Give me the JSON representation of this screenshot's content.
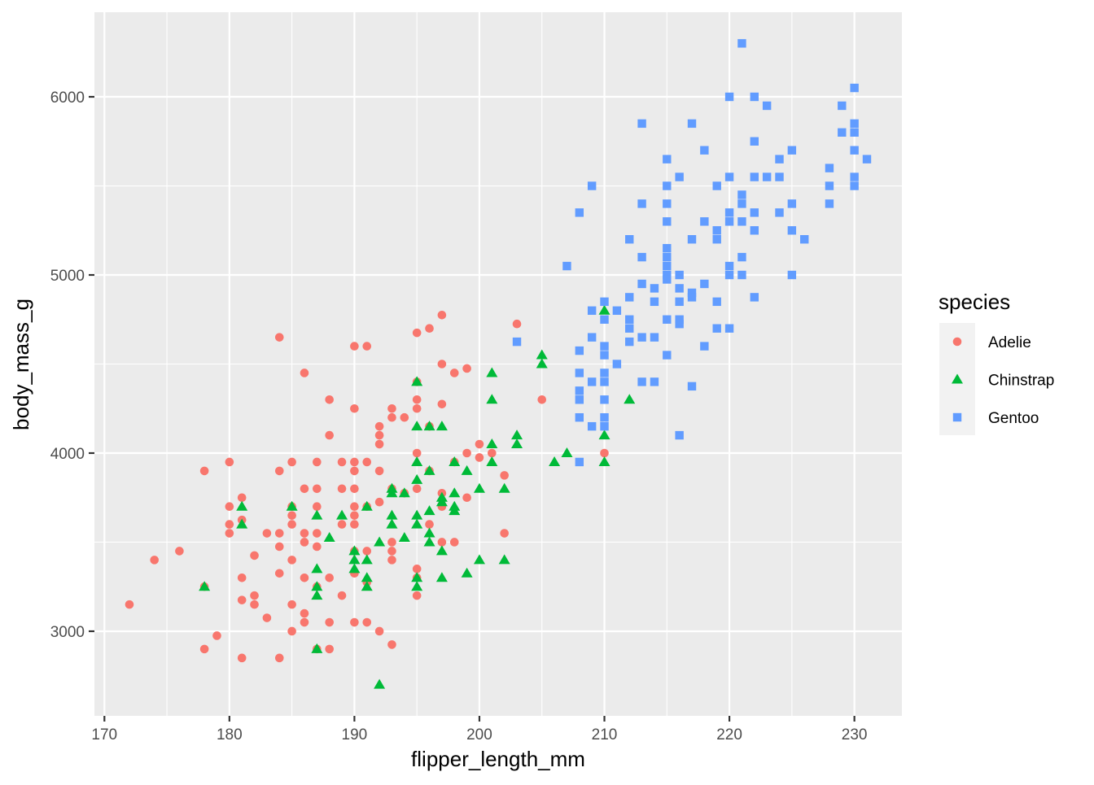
{
  "chart_data": {
    "type": "scatter",
    "title": "",
    "xlabel": "flipper_length_mm",
    "ylabel": "body_mass_g",
    "xlim": [
      169.2,
      233.8
    ],
    "ylim": [
      2525,
      6475
    ],
    "x_ticks": [
      170,
      180,
      190,
      200,
      210,
      220,
      230
    ],
    "y_ticks": [
      3000,
      4000,
      5000,
      6000
    ],
    "grid": true,
    "legend": {
      "title": "species",
      "position": "right"
    },
    "series": [
      {
        "name": "Adelie",
        "color": "#F8766D",
        "shape": "circle",
        "points": [
          [
            172,
            3150
          ],
          [
            174,
            3400
          ],
          [
            176,
            3450
          ],
          [
            178,
            3900
          ],
          [
            178,
            3250
          ],
          [
            178,
            2900
          ],
          [
            179,
            2975
          ],
          [
            180,
            3950
          ],
          [
            180,
            3700
          ],
          [
            180,
            3600
          ],
          [
            180,
            3550
          ],
          [
            181,
            3750
          ],
          [
            181,
            3625
          ],
          [
            181,
            3300
          ],
          [
            181,
            3175
          ],
          [
            181,
            2850
          ],
          [
            182,
            3425
          ],
          [
            182,
            3200
          ],
          [
            182,
            3150
          ],
          [
            183,
            3550
          ],
          [
            183,
            3075
          ],
          [
            184,
            4650
          ],
          [
            184,
            3900
          ],
          [
            184,
            3550
          ],
          [
            184,
            3475
          ],
          [
            184,
            3325
          ],
          [
            184,
            2850
          ],
          [
            185,
            3950
          ],
          [
            185,
            3700
          ],
          [
            185,
            3650
          ],
          [
            185,
            3600
          ],
          [
            185,
            3400
          ],
          [
            185,
            3150
          ],
          [
            185,
            3000
          ],
          [
            186,
            4450
          ],
          [
            186,
            3800
          ],
          [
            186,
            3550
          ],
          [
            186,
            3500
          ],
          [
            186,
            3300
          ],
          [
            186,
            3100
          ],
          [
            186,
            3050
          ],
          [
            187,
            3950
          ],
          [
            187,
            3800
          ],
          [
            187,
            3700
          ],
          [
            187,
            3550
          ],
          [
            187,
            3475
          ],
          [
            187,
            3250
          ],
          [
            187,
            2900
          ],
          [
            188,
            4300
          ],
          [
            188,
            4100
          ],
          [
            188,
            3300
          ],
          [
            188,
            3050
          ],
          [
            188,
            2900
          ],
          [
            189,
            3950
          ],
          [
            189,
            3800
          ],
          [
            189,
            3600
          ],
          [
            189,
            3200
          ],
          [
            190,
            4600
          ],
          [
            190,
            4250
          ],
          [
            190,
            3950
          ],
          [
            190,
            3900
          ],
          [
            190,
            3800
          ],
          [
            190,
            3700
          ],
          [
            190,
            3650
          ],
          [
            190,
            3600
          ],
          [
            190,
            3450
          ],
          [
            190,
            3325
          ],
          [
            190,
            3050
          ],
          [
            191,
            4600
          ],
          [
            191,
            3950
          ],
          [
            191,
            3700
          ],
          [
            191,
            3450
          ],
          [
            191,
            3275
          ],
          [
            191,
            3050
          ],
          [
            192,
            4150
          ],
          [
            192,
            4100
          ],
          [
            192,
            4050
          ],
          [
            192,
            3900
          ],
          [
            192,
            3725
          ],
          [
            192,
            3000
          ],
          [
            193,
            4250
          ],
          [
            193,
            4200
          ],
          [
            193,
            3800
          ],
          [
            193,
            3500
          ],
          [
            193,
            3450
          ],
          [
            193,
            3400
          ],
          [
            193,
            2925
          ],
          [
            194,
            4200
          ],
          [
            194,
            3775
          ],
          [
            195,
            4675
          ],
          [
            195,
            4400
          ],
          [
            195,
            4300
          ],
          [
            195,
            4250
          ],
          [
            195,
            4000
          ],
          [
            195,
            3800
          ],
          [
            195,
            3350
          ],
          [
            195,
            3300
          ],
          [
            195,
            3200
          ],
          [
            196,
            4700
          ],
          [
            196,
            4150
          ],
          [
            196,
            3900
          ],
          [
            196,
            3600
          ],
          [
            197,
            4775
          ],
          [
            197,
            4500
          ],
          [
            197,
            4275
          ],
          [
            197,
            3775
          ],
          [
            197,
            3700
          ],
          [
            197,
            3500
          ],
          [
            198,
            4450
          ],
          [
            198,
            3950
          ],
          [
            198,
            3500
          ],
          [
            199,
            4475
          ],
          [
            199,
            4000
          ],
          [
            199,
            3750
          ],
          [
            200,
            4050
          ],
          [
            200,
            3975
          ],
          [
            201,
            4000
          ],
          [
            202,
            3875
          ],
          [
            202,
            3550
          ],
          [
            203,
            4725
          ],
          [
            205,
            4300
          ],
          [
            210,
            4000
          ]
        ]
      },
      {
        "name": "Chinstrap",
        "color": "#00BA38",
        "shape": "triangle",
        "points": [
          [
            178,
            3250
          ],
          [
            181,
            3700
          ],
          [
            181,
            3600
          ],
          [
            185,
            3700
          ],
          [
            187,
            3650
          ],
          [
            187,
            3350
          ],
          [
            187,
            3250
          ],
          [
            187,
            3200
          ],
          [
            187,
            2900
          ],
          [
            188,
            3525
          ],
          [
            189,
            3650
          ],
          [
            190,
            3450
          ],
          [
            190,
            3400
          ],
          [
            190,
            3350
          ],
          [
            191,
            3700
          ],
          [
            191,
            3400
          ],
          [
            191,
            3300
          ],
          [
            191,
            3250
          ],
          [
            192,
            3500
          ],
          [
            192,
            2700
          ],
          [
            193,
            3800
          ],
          [
            193,
            3775
          ],
          [
            193,
            3650
          ],
          [
            193,
            3600
          ],
          [
            194,
            3775
          ],
          [
            194,
            3525
          ],
          [
            195,
            4400
          ],
          [
            195,
            4150
          ],
          [
            195,
            3950
          ],
          [
            195,
            3850
          ],
          [
            195,
            3650
          ],
          [
            195,
            3600
          ],
          [
            195,
            3300
          ],
          [
            195,
            3250
          ],
          [
            196,
            4150
          ],
          [
            196,
            3900
          ],
          [
            196,
            3675
          ],
          [
            196,
            3550
          ],
          [
            196,
            3500
          ],
          [
            197,
            4150
          ],
          [
            197,
            3750
          ],
          [
            197,
            3725
          ],
          [
            197,
            3450
          ],
          [
            197,
            3300
          ],
          [
            198,
            3950
          ],
          [
            198,
            3775
          ],
          [
            198,
            3700
          ],
          [
            198,
            3675
          ],
          [
            199,
            3900
          ],
          [
            199,
            3325
          ],
          [
            200,
            3800
          ],
          [
            200,
            3400
          ],
          [
            201,
            4450
          ],
          [
            201,
            4300
          ],
          [
            201,
            4050
          ],
          [
            201,
            3950
          ],
          [
            202,
            3800
          ],
          [
            202,
            3400
          ],
          [
            203,
            4100
          ],
          [
            203,
            4050
          ],
          [
            205,
            4550
          ],
          [
            205,
            4500
          ],
          [
            206,
            3950
          ],
          [
            207,
            4000
          ],
          [
            210,
            4800
          ],
          [
            210,
            4100
          ],
          [
            210,
            3950
          ],
          [
            212,
            4300
          ]
        ]
      },
      {
        "name": "Gentoo",
        "color": "#619CFF",
        "shape": "square",
        "points": [
          [
            203,
            4625
          ],
          [
            207,
            5050
          ],
          [
            208,
            5350
          ],
          [
            208,
            4575
          ],
          [
            208,
            4450
          ],
          [
            208,
            4350
          ],
          [
            208,
            4300
          ],
          [
            208,
            4200
          ],
          [
            208,
            3950
          ],
          [
            209,
            5500
          ],
          [
            209,
            4800
          ],
          [
            209,
            4650
          ],
          [
            209,
            4400
          ],
          [
            209,
            4150
          ],
          [
            210,
            4850
          ],
          [
            210,
            4750
          ],
          [
            210,
            4600
          ],
          [
            210,
            4550
          ],
          [
            210,
            4450
          ],
          [
            210,
            4400
          ],
          [
            210,
            4300
          ],
          [
            210,
            4200
          ],
          [
            210,
            4150
          ],
          [
            211,
            4800
          ],
          [
            211,
            4500
          ],
          [
            212,
            5200
          ],
          [
            212,
            4875
          ],
          [
            212,
            4750
          ],
          [
            212,
            4700
          ],
          [
            212,
            4625
          ],
          [
            213,
            5850
          ],
          [
            213,
            5400
          ],
          [
            213,
            5100
          ],
          [
            213,
            4950
          ],
          [
            213,
            4650
          ],
          [
            213,
            4400
          ],
          [
            214,
            4925
          ],
          [
            214,
            4850
          ],
          [
            214,
            4650
          ],
          [
            214,
            4400
          ],
          [
            215,
            5650
          ],
          [
            215,
            5500
          ],
          [
            215,
            5400
          ],
          [
            215,
            5300
          ],
          [
            215,
            5150
          ],
          [
            215,
            5100
          ],
          [
            215,
            5050
          ],
          [
            215,
            5000
          ],
          [
            215,
            4975
          ],
          [
            215,
            4750
          ],
          [
            215,
            4550
          ],
          [
            216,
            5550
          ],
          [
            216,
            5000
          ],
          [
            216,
            4925
          ],
          [
            216,
            4850
          ],
          [
            216,
            4750
          ],
          [
            216,
            4725
          ],
          [
            216,
            4100
          ],
          [
            217,
            5850
          ],
          [
            217,
            5200
          ],
          [
            217,
            4900
          ],
          [
            217,
            4875
          ],
          [
            217,
            4375
          ],
          [
            218,
            5700
          ],
          [
            218,
            5300
          ],
          [
            218,
            4950
          ],
          [
            218,
            4600
          ],
          [
            219,
            5500
          ],
          [
            219,
            5250
          ],
          [
            219,
            5200
          ],
          [
            219,
            4850
          ],
          [
            219,
            4700
          ],
          [
            220,
            6000
          ],
          [
            220,
            5550
          ],
          [
            220,
            5350
          ],
          [
            220,
            5300
          ],
          [
            220,
            5050
          ],
          [
            220,
            5000
          ],
          [
            220,
            4700
          ],
          [
            221,
            6300
          ],
          [
            221,
            5450
          ],
          [
            221,
            5400
          ],
          [
            221,
            5300
          ],
          [
            221,
            5100
          ],
          [
            221,
            5000
          ],
          [
            222,
            6000
          ],
          [
            222,
            5750
          ],
          [
            222,
            5550
          ],
          [
            222,
            5350
          ],
          [
            222,
            5250
          ],
          [
            222,
            4875
          ],
          [
            223,
            5950
          ],
          [
            223,
            5550
          ],
          [
            224,
            5650
          ],
          [
            224,
            5550
          ],
          [
            224,
            5350
          ],
          [
            225,
            5700
          ],
          [
            225,
            5400
          ],
          [
            225,
            5250
          ],
          [
            225,
            5000
          ],
          [
            226,
            5200
          ],
          [
            228,
            5600
          ],
          [
            228,
            5500
          ],
          [
            228,
            5400
          ],
          [
            229,
            5950
          ],
          [
            229,
            5800
          ],
          [
            230,
            6050
          ],
          [
            230,
            5850
          ],
          [
            230,
            5800
          ],
          [
            230,
            5700
          ],
          [
            230,
            5550
          ],
          [
            230,
            5500
          ],
          [
            231,
            5650
          ]
        ]
      }
    ]
  },
  "plot": {
    "panel_background": "#EBEBEB",
    "grid_color": "#FFFFFF",
    "axis_text_color": "#4D4D4D",
    "axis_title_color": "#000000",
    "legend_key_background": "#F2F2F2"
  }
}
